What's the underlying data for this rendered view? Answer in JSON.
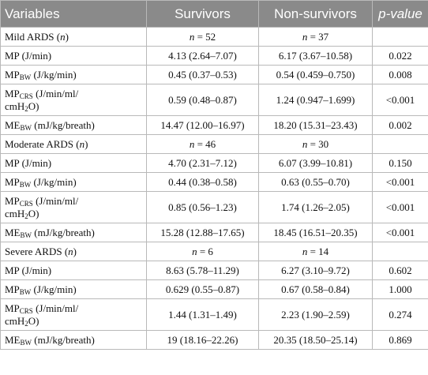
{
  "headers": {
    "variables": "Variables",
    "survivors": "Survivors",
    "non_survivors": "Non-survivors",
    "p_value": "p-value"
  },
  "groups": [
    {
      "label_pre": "Mild ARDS (",
      "label_n": "n",
      "label_post": ")",
      "survivors_n": "n",
      "survivors_count": " = 52",
      "non_survivors_n": "n",
      "non_survivors_count": " = 37",
      "rows": [
        {
          "base": "MP",
          "sub": "",
          "unit": " (J/min)",
          "survivors": "4.13 (2.64–7.07)",
          "non_survivors": "6.17 (3.67–10.58)",
          "p": "0.022"
        },
        {
          "base": "MP",
          "sub": "BW",
          "unit": " (J/kg/min)",
          "survivors": "0.45 (0.37–0.53)",
          "non_survivors": "0.54 (0.459–0.750)",
          "p": "0.008"
        },
        {
          "base": "MP",
          "sub": "CRS",
          "unit": " (J/min/ml/",
          "unit2_pre": "cmH",
          "unit2_sub": "2",
          "unit2_post": "O)",
          "survivors": "0.59 (0.48–0.87)",
          "non_survivors": "1.24 (0.947–1.699)",
          "p": "<0.001"
        },
        {
          "base": "ME",
          "sub": "BW",
          "unit": " (mJ/kg/breath)",
          "survivors": "14.47 (12.00–16.97)",
          "non_survivors": "18.20 (15.31–23.43)",
          "p": "0.002"
        }
      ]
    },
    {
      "label_pre": "Moderate ARDS (",
      "label_n": "n",
      "label_post": ")",
      "survivors_n": "n",
      "survivors_count": " = 46",
      "non_survivors_n": "n",
      "non_survivors_count": " = 30",
      "rows": [
        {
          "base": "MP",
          "sub": "",
          "unit": " (J/min)",
          "survivors": "4.70 (2.31–7.12)",
          "non_survivors": "6.07 (3.99–10.81)",
          "p": "0.150"
        },
        {
          "base": "MP",
          "sub": "BW",
          "unit": " (J/kg/min)",
          "survivors": "0.44 (0.38–0.58)",
          "non_survivors": "0.63 (0.55–0.70)",
          "p": "<0.001"
        },
        {
          "base": "MP",
          "sub": "CRS",
          "unit": " (J/min/ml/",
          "unit2_pre": "cmH",
          "unit2_sub": "2",
          "unit2_post": "O)",
          "survivors": "0.85 (0.56–1.23)",
          "non_survivors": "1.74 (1.26–2.05)",
          "p": "<0.001"
        },
        {
          "base": "ME",
          "sub": "BW",
          "unit": " (mJ/kg/breath)",
          "survivors": "15.28 (12.88–17.65)",
          "non_survivors": "18.45 (16.51–20.35)",
          "p": "<0.001"
        }
      ]
    },
    {
      "label_pre": "Severe ARDS (",
      "label_n": "n",
      "label_post": ")",
      "survivors_n": "n",
      "survivors_count": " = 6",
      "non_survivors_n": "n",
      "non_survivors_count": " = 14",
      "rows": [
        {
          "base": "MP",
          "sub": "",
          "unit": " (J/min)",
          "survivors": "8.63 (5.78–11.29)",
          "non_survivors": "6.27 (3.10–9.72)",
          "p": "0.602"
        },
        {
          "base": "MP",
          "sub": "BW",
          "unit": " (J/kg/min)",
          "survivors": "0.629 (0.55–0.87)",
          "non_survivors": "0.67 (0.58–0.84)",
          "p": "1.000"
        },
        {
          "base": "MP",
          "sub": "CRS",
          "unit": " (J/min/ml/",
          "unit2_pre": "cmH",
          "unit2_sub": "2",
          "unit2_post": "O)",
          "survivors": "1.44 (1.31–1.49)",
          "non_survivors": "2.23 (1.90–2.59)",
          "p": "0.274"
        },
        {
          "base": "ME",
          "sub": "BW",
          "unit": " (mJ/kg/breath)",
          "survivors": "19 (18.16–22.26)",
          "non_survivors": "20.35 (18.50–25.14)",
          "p": "0.869"
        }
      ]
    }
  ]
}
